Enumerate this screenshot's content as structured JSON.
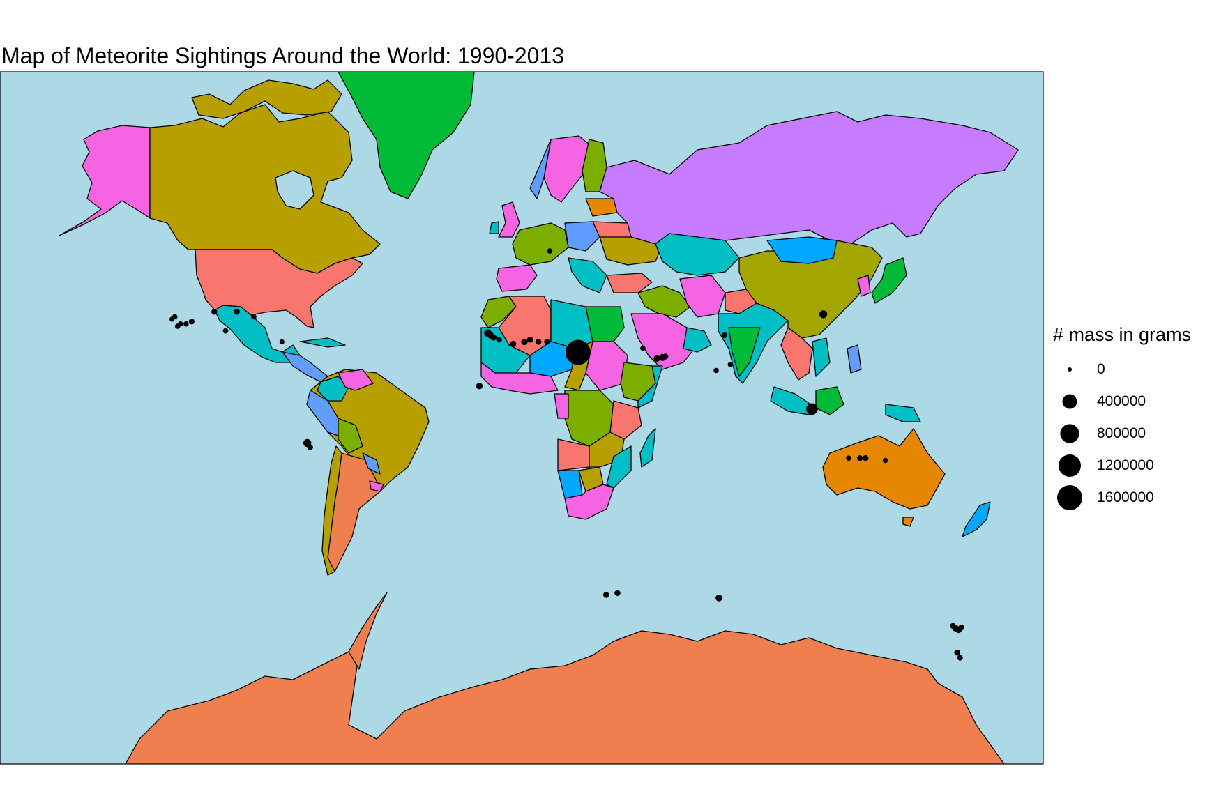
{
  "title": "Map of Meteorite Sightings Around the World: 1990-2013",
  "legend": {
    "title": "# mass in grams",
    "entries": [
      {
        "label": "0",
        "value": 0
      },
      {
        "label": "400000",
        "value": 400000
      },
      {
        "label": "800000",
        "value": 800000
      },
      {
        "label": "1200000",
        "value": 1200000
      },
      {
        "label": "1600000",
        "value": 1600000
      }
    ]
  },
  "colors": {
    "ocean": "#add8e6",
    "border": "#000000",
    "points": "#000000",
    "greenland": "#00ba38",
    "canada": "#b79f00",
    "usa": "#f8766d",
    "alaska": "#f564e3",
    "russia": "#c77cff",
    "china": "#a3a500",
    "australia": "#e58700",
    "antarctica": "#f07f4f",
    "south_america": "#b79f00",
    "africa_mix": [
      "#00bfc4",
      "#7cae00",
      "#f564e3",
      "#f8766d",
      "#00a9ff",
      "#619cff",
      "#b79f00"
    ]
  },
  "chart_data": {
    "type": "scatter",
    "projection": "mercator",
    "size_variable": "mass in grams",
    "points": [
      {
        "lon": -117,
        "lat": 34,
        "mass": 5000
      },
      {
        "lon": -116,
        "lat": 35,
        "mass": 5000
      },
      {
        "lon": -114,
        "lat": 35,
        "mass": 4000
      },
      {
        "lon": -112,
        "lat": 36,
        "mass": 8000
      },
      {
        "lon": -104,
        "lat": 40,
        "mass": 10000
      },
      {
        "lon": -96,
        "lat": 40,
        "mass": 12000
      },
      {
        "lon": -90,
        "lat": 38,
        "mass": 6000
      },
      {
        "lon": -100,
        "lat": 32,
        "mass": 6000
      },
      {
        "lon": -118,
        "lat": 38,
        "mass": 5000
      },
      {
        "lon": -119,
        "lat": 37,
        "mass": 3000
      },
      {
        "lon": -80,
        "lat": 27,
        "mass": 3000
      },
      {
        "lon": -7,
        "lat": 31,
        "mass": 40000
      },
      {
        "lon": -6,
        "lat": 30,
        "mass": 20000
      },
      {
        "lon": -5,
        "lat": 29,
        "mass": 15000
      },
      {
        "lon": -3,
        "lat": 28,
        "mass": 10000
      },
      {
        "lon": 2,
        "lat": 26,
        "mass": 15000
      },
      {
        "lon": 6,
        "lat": 27,
        "mass": 20000
      },
      {
        "lon": 8,
        "lat": 28,
        "mass": 12000
      },
      {
        "lon": 11,
        "lat": 27,
        "mass": 10000
      },
      {
        "lon": 14,
        "lat": 27,
        "mass": 8000
      },
      {
        "lon": 25,
        "lat": 22,
        "mass": 1600000
      },
      {
        "lon": 53,
        "lat": 19,
        "mass": 20000
      },
      {
        "lon": 55,
        "lat": 19.5,
        "mass": 30000
      },
      {
        "lon": 56,
        "lat": 20,
        "mass": 10000
      },
      {
        "lon": 48,
        "lat": 24,
        "mass": 5000
      },
      {
        "lon": 77,
        "lat": 30,
        "mass": 8000
      },
      {
        "lon": 74,
        "lat": 13,
        "mass": 4000
      },
      {
        "lon": 79,
        "lat": 16,
        "mass": 3000
      },
      {
        "lon": 112,
        "lat": 39,
        "mass": 50000
      },
      {
        "lon": 108,
        "lat": -7,
        "mass": 200000
      },
      {
        "lon": 15,
        "lat": 60,
        "mass": 5000
      },
      {
        "lon": -10,
        "lat": 5,
        "mass": 20000
      },
      {
        "lon": -71,
        "lat": -24,
        "mass": 50000
      },
      {
        "lon": -70,
        "lat": -26,
        "mass": 8000
      },
      {
        "lon": 121,
        "lat": -31,
        "mass": 5000
      },
      {
        "lon": 125,
        "lat": -31,
        "mass": 8000
      },
      {
        "lon": 127,
        "lat": -31,
        "mass": 10000
      },
      {
        "lon": 134,
        "lat": -32,
        "mass": 5000
      },
      {
        "lon": 35,
        "lat": -71.5,
        "mass": 12000
      },
      {
        "lon": 39,
        "lat": -71.2,
        "mass": 10000
      },
      {
        "lon": 75,
        "lat": -72,
        "mass": 25000
      },
      {
        "lon": 158,
        "lat": -76,
        "mass": 10000
      },
      {
        "lon": 159,
        "lat": -76.3,
        "mass": 20000
      },
      {
        "lon": 160,
        "lat": -76.5,
        "mass": 15000
      },
      {
        "lon": 161,
        "lat": -76.2,
        "mass": 10000
      },
      {
        "lon": 159.5,
        "lat": -79,
        "mass": 12000
      },
      {
        "lon": 160.5,
        "lat": -79.5,
        "mass": 8000
      }
    ]
  }
}
